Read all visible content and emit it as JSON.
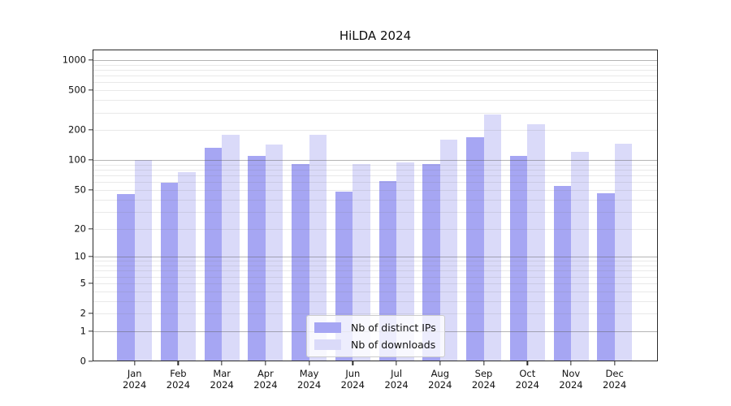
{
  "chart_data": {
    "type": "bar",
    "title": "HiLDA 2024",
    "x_tick_labels": [
      "Jan\n2024",
      "Feb\n2024",
      "Mar\n2024",
      "Apr\n2024",
      "May\n2024",
      "Jun\n2024",
      "Jul\n2024",
      "Aug\n2024",
      "Sep\n2024",
      "Oct\n2024",
      "Nov\n2024",
      "Dec\n2024"
    ],
    "series": [
      {
        "name": "Nb of distinct IPs",
        "color": "#a6a6f3",
        "values": [
          45,
          59,
          132,
          110,
          92,
          48,
          61,
          92,
          170,
          110,
          55,
          46
        ]
      },
      {
        "name": "Nb of downloads",
        "color": "#dadaf9",
        "values": [
          100,
          75,
          181,
          142,
          180,
          92,
          94,
          160,
          285,
          228,
          120,
          145
        ]
      }
    ],
    "xlabel": "",
    "ylabel": "",
    "y_scale": "log10(value+1)",
    "y_ticks": [
      0,
      1,
      2,
      5,
      10,
      20,
      50,
      100,
      200,
      500,
      1000
    ],
    "ylim": [
      0,
      1272
    ],
    "grid": "horizontal major at powers of 10, minor at 2-9 per decade",
    "legend_position": "lower center inside plot"
  }
}
